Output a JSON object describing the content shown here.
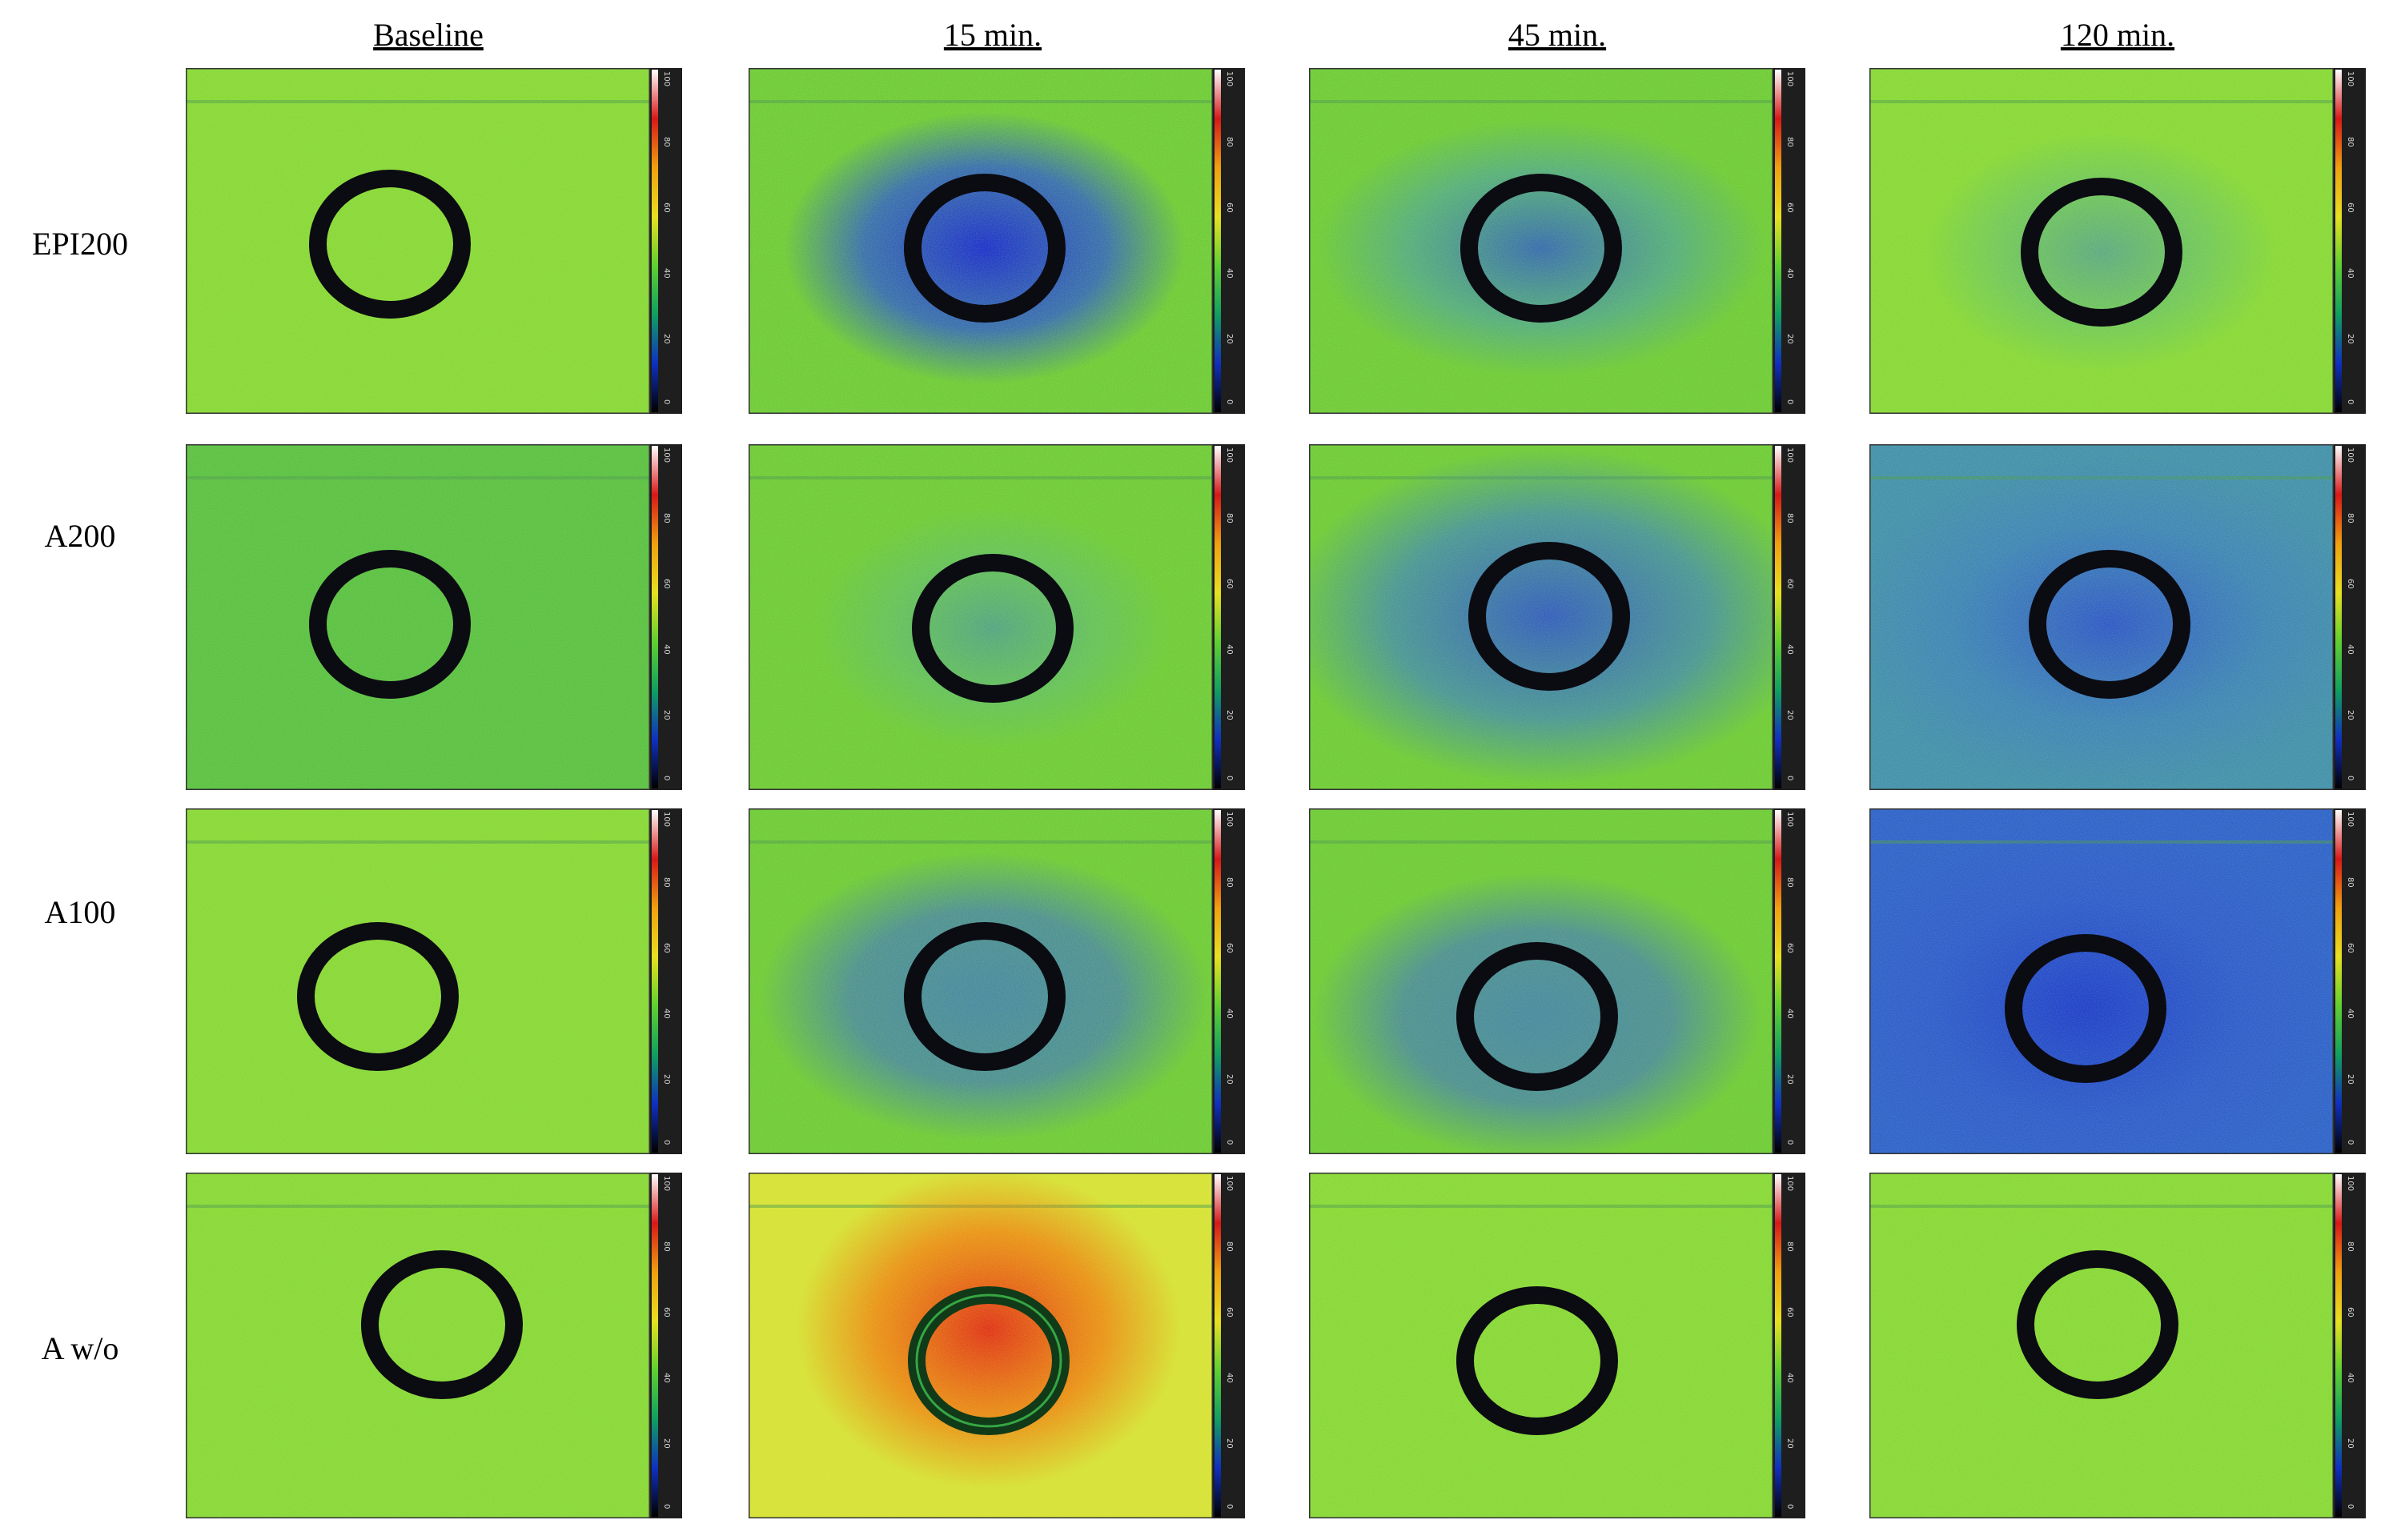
{
  "columns": [
    "Baseline",
    "15 min.",
    "45 min.",
    "120 min."
  ],
  "rows": [
    "EPI200",
    "A200",
    "A100",
    "A w/o"
  ],
  "colorbar_ticks": [
    "100",
    "80",
    "60",
    "40",
    "20",
    "0"
  ],
  "colorbar_stops": [
    "#ffffff",
    "#d81818",
    "#f0a010",
    "#e8e020",
    "#60d030",
    "#10a060",
    "#1030c0",
    "#000000"
  ],
  "panels": [
    [
      {
        "field": "light-green",
        "blob": null
      },
      {
        "field": "green",
        "blob": "deep-blue"
      },
      {
        "field": "green",
        "blob": "mid-blue"
      },
      {
        "field": "light-green",
        "blob": "faint-blue"
      }
    ],
    [
      {
        "field": "green-blue",
        "blob": null
      },
      {
        "field": "green",
        "blob": "faint-blue"
      },
      {
        "field": "green",
        "blob": "blue-wide"
      },
      {
        "field": "blue-green",
        "blob": "blue-wide"
      }
    ],
    [
      {
        "field": "light-green",
        "blob": null
      },
      {
        "field": "green",
        "blob": "blue-halo"
      },
      {
        "field": "green",
        "blob": "blue-halo"
      },
      {
        "field": "blue",
        "blob": "deep-blue-wide"
      }
    ],
    [
      {
        "field": "light-green",
        "blob": null
      },
      {
        "field": "yellow-green",
        "blob": "red-plume"
      },
      {
        "field": "light-green",
        "blob": null
      },
      {
        "field": "light-green",
        "blob": null
      }
    ]
  ]
}
